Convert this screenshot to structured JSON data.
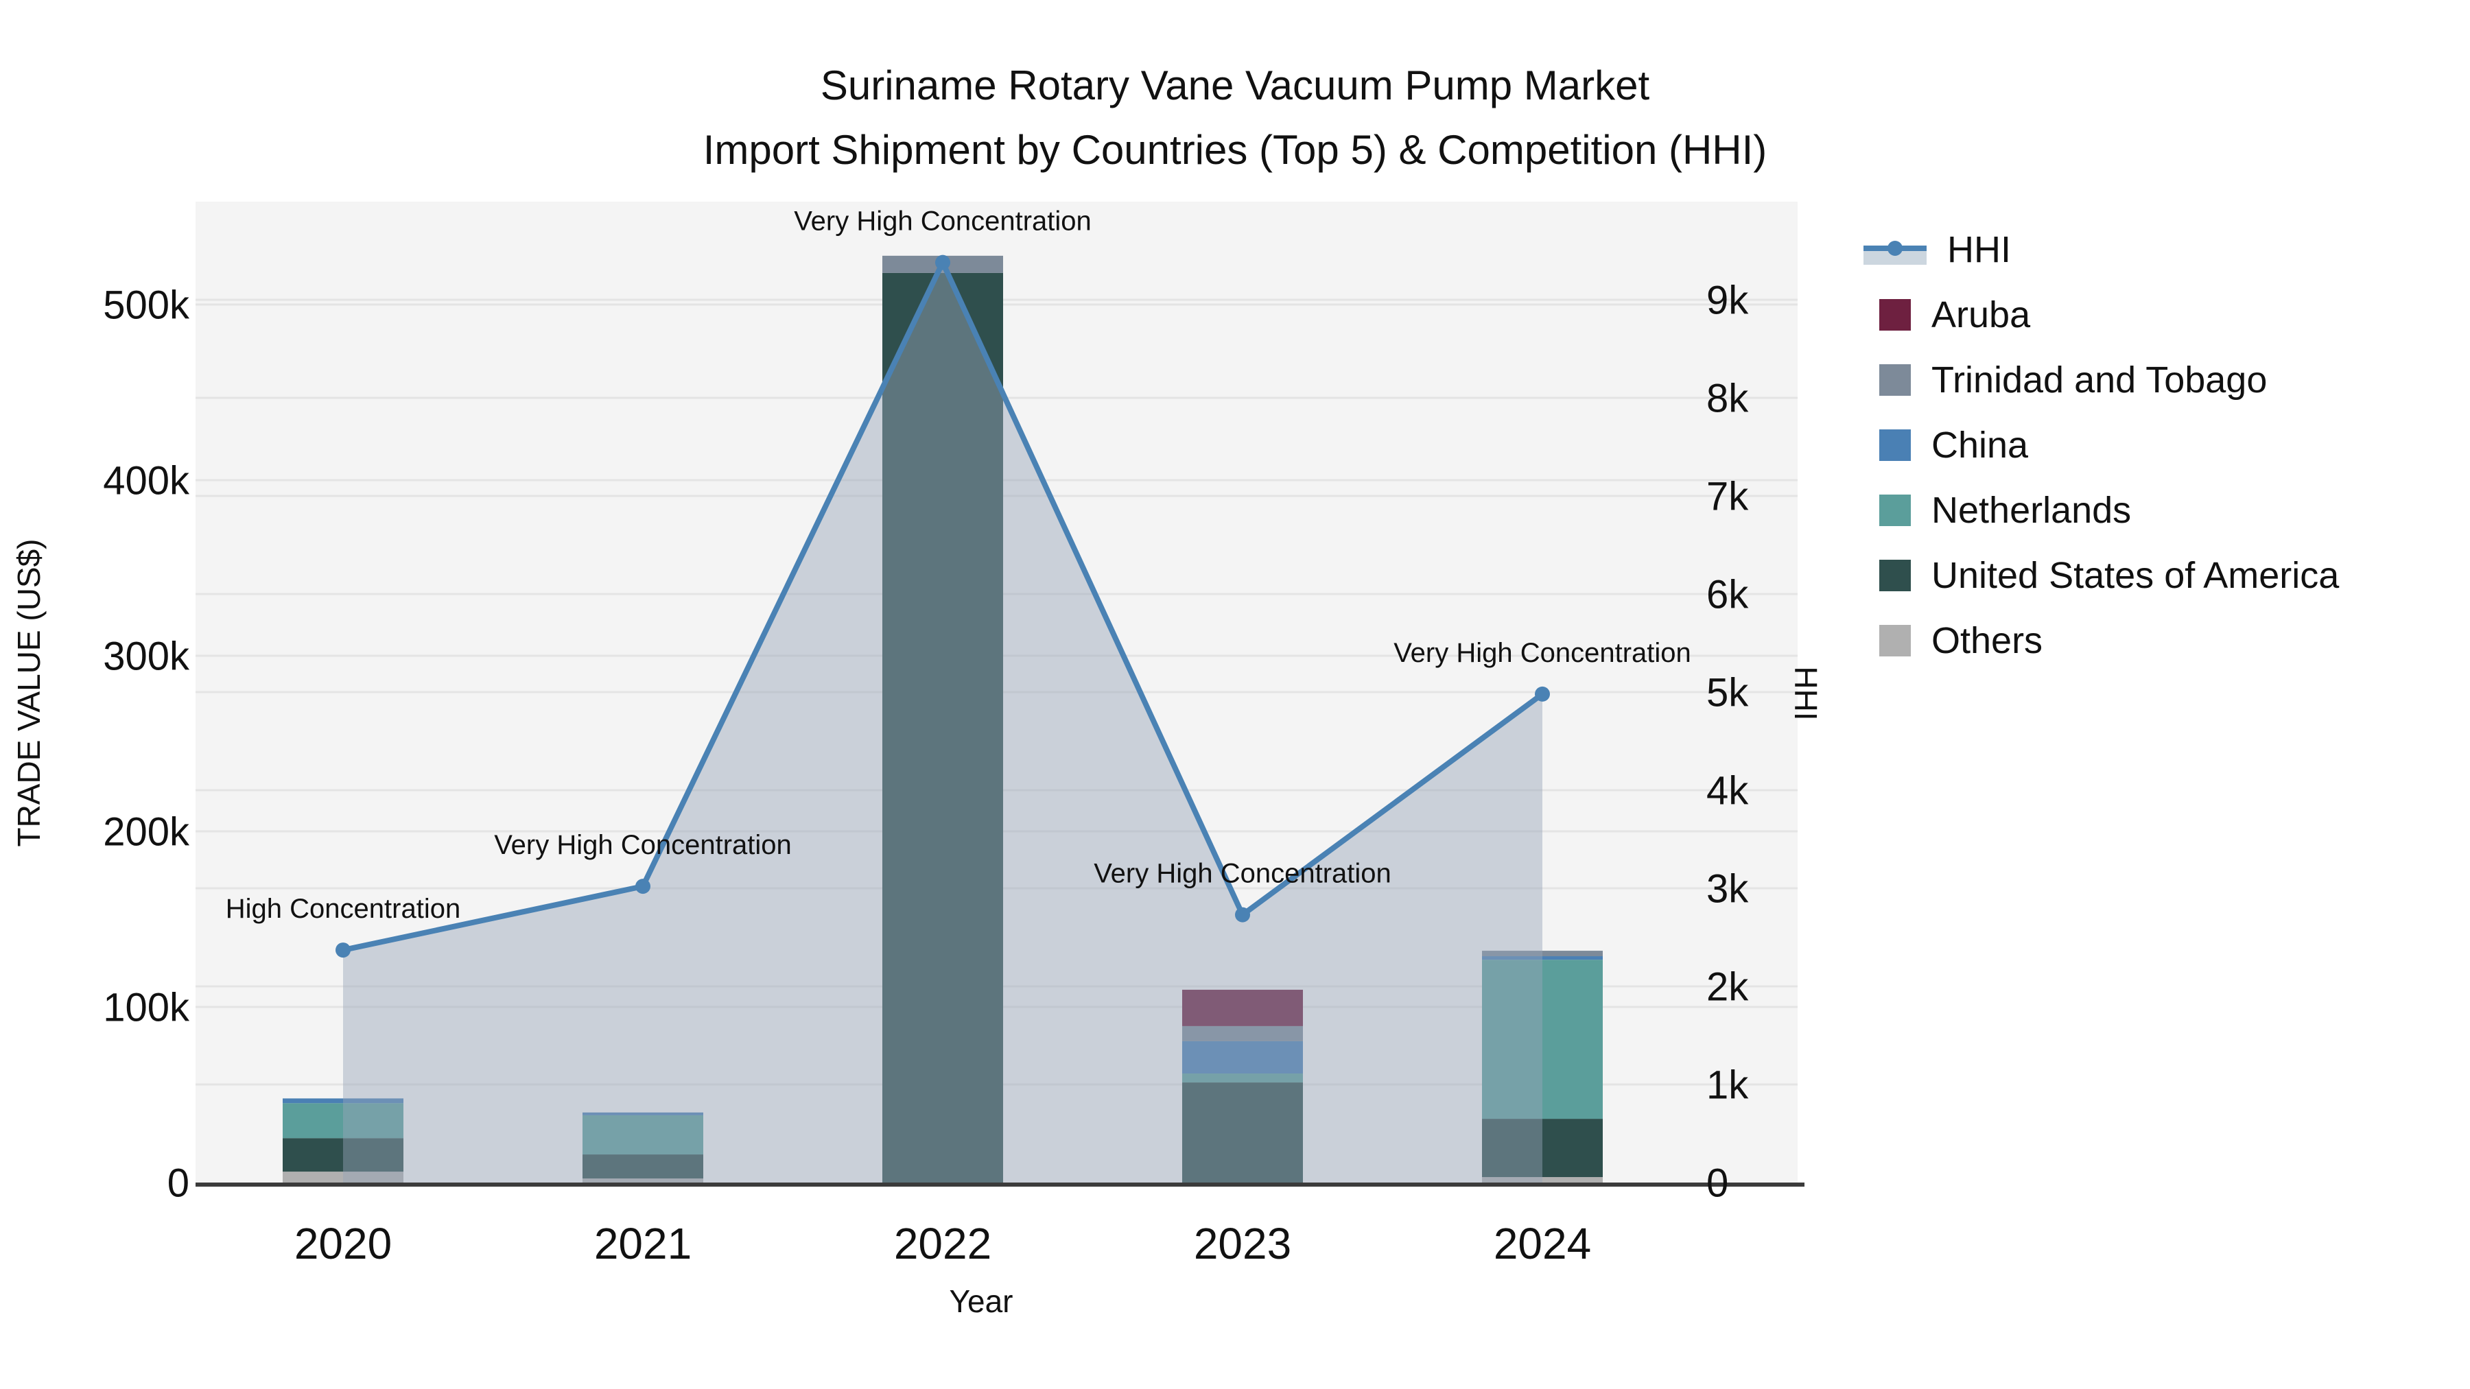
{
  "title": {
    "line1": "Suriname Rotary Vane Vacuum Pump Market",
    "line2": "Import Shipment by Countries (Top 5) & Competition (HHI)"
  },
  "axes": {
    "left": {
      "title": "TRADE VALUE (US$)",
      "tick_values": [
        0,
        100000,
        200000,
        300000,
        400000,
        500000
      ],
      "tick_labels": [
        "0",
        "100k",
        "200k",
        "300k",
        "400k",
        "500k"
      ],
      "range": [
        0,
        558600
      ]
    },
    "right": {
      "title": "HHI",
      "tick_values": [
        0,
        1000,
        2000,
        3000,
        4000,
        5000,
        6000,
        7000,
        8000,
        9000
      ],
      "tick_labels": [
        "0",
        "1k",
        "2k",
        "3k",
        "4k",
        "5k",
        "6k",
        "7k",
        "8k",
        "9k"
      ],
      "range": [
        0,
        10000
      ]
    },
    "x": {
      "title": "Year",
      "categories": [
        "2020",
        "2021",
        "2022",
        "2023",
        "2024"
      ]
    }
  },
  "legend": {
    "items": [
      {
        "label": "HHI",
        "type": "line",
        "color": "#4a82b4",
        "band": "#ccd6df"
      },
      {
        "label": "Aruba",
        "type": "swatch",
        "color": "#6e2040"
      },
      {
        "label": "Trinidad and Tobago",
        "type": "swatch",
        "color": "#7d8a99"
      },
      {
        "label": "China",
        "type": "swatch",
        "color": "#4a80b4"
      },
      {
        "label": "Netherlands",
        "type": "swatch",
        "color": "#5b9e9b"
      },
      {
        "label": "United States of America",
        "type": "swatch",
        "color": "#2f4f4d"
      },
      {
        "label": "Others",
        "type": "swatch",
        "color": "#b0b0b0"
      }
    ]
  },
  "chart_data": {
    "type": "combo: stacked-bar + line(area)",
    "categories": [
      "2020",
      "2021",
      "2022",
      "2023",
      "2024"
    ],
    "bar_value_unit": "US$",
    "bar_stack_order_note": "series listed bottom-to-top of stack",
    "series": [
      {
        "name": "Others",
        "color": "#b0b0b0",
        "values": [
          6200,
          2300,
          0,
          0,
          3100
        ]
      },
      {
        "name": "United States of America",
        "color": "#2f4f4d",
        "values": [
          19100,
          13700,
          518000,
          57000,
          33200
        ]
      },
      {
        "name": "Netherlands",
        "color": "#5b9e9b",
        "values": [
          19900,
          22300,
          0,
          5100,
          90600
        ]
      },
      {
        "name": "China",
        "color": "#4a80b4",
        "values": [
          2700,
          1600,
          0,
          18400,
          2000
        ]
      },
      {
        "name": "Trinidad and Tobago",
        "color": "#7d8a99",
        "values": [
          0,
          0,
          9800,
          8600,
          3100
        ]
      },
      {
        "name": "Aruba",
        "color": "#6e2040",
        "values": [
          0,
          0,
          0,
          20700,
          0
        ]
      }
    ],
    "bar_totals": [
      47900,
      39900,
      527800,
      109800,
      132000
    ],
    "line_series": {
      "name": "HHI",
      "axis": "right",
      "color": "#4a82b4",
      "area_fill": "rgba(150,165,185,0.45)",
      "values": [
        2370,
        3020,
        9380,
        2730,
        4980
      ]
    },
    "annotations": [
      {
        "x": "2020",
        "text": "High Concentration"
      },
      {
        "x": "2021",
        "text": "Very High Concentration"
      },
      {
        "x": "2022",
        "text": "Very High Concentration"
      },
      {
        "x": "2023",
        "text": "Very High Concentration"
      },
      {
        "x": "2024",
        "text": "Very High Concentration"
      }
    ],
    "xlabel": "Year",
    "ylabel_left": "TRADE VALUE (US$)",
    "ylabel_right": "HHI",
    "grid": true,
    "legend_position": "right"
  },
  "colors": {
    "figure_bg": "#ffffff",
    "plot_bg": "#f4f4f4",
    "gridline": "#e4e4e4",
    "axis_line": "#3b3b3b",
    "text": "#111111"
  }
}
